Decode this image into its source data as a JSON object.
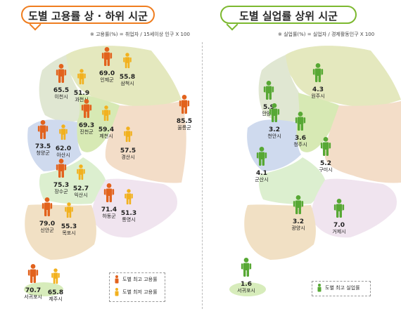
{
  "left_panel": {
    "title": "도별 고용률 상 · 하위 시군",
    "formula": "※ 고용률(%) = 취업자 / 15세이상 인구 X 100",
    "legend": {
      "high": "도별 최고 고용률",
      "low": "도별 최저 고용률"
    }
  },
  "right_panel": {
    "title": "도별 실업률 상위 시군",
    "formula": "※ 실업률(%) = 실업자 / 경제활동인구 X 100",
    "legend": {
      "high": "도별 최고 실업률"
    }
  },
  "colors": {
    "high": "#e2621d",
    "low": "#f2b11e",
    "unemp": "#57a834",
    "title_left": "#ef7d1f",
    "title_right": "#7cb82f"
  },
  "chart_data": [
    {
      "type": "map",
      "title": "도별 고용률 상 · 하위 시군",
      "unit": "%",
      "points": [
        {
          "name": "인제군",
          "value": 69.0,
          "kind": "high"
        },
        {
          "name": "삼척시",
          "value": 55.8,
          "kind": "low"
        },
        {
          "name": "이천시",
          "value": 65.5,
          "kind": "high"
        },
        {
          "name": "과천시",
          "value": 51.9,
          "kind": "low"
        },
        {
          "name": "울릉군",
          "value": 85.5,
          "kind": "high"
        },
        {
          "name": "진천군",
          "value": 69.3,
          "kind": "high"
        },
        {
          "name": "제천시",
          "value": 59.4,
          "kind": "low"
        },
        {
          "name": "청양군",
          "value": 73.5,
          "kind": "high"
        },
        {
          "name": "아산시",
          "value": 62.0,
          "kind": "low"
        },
        {
          "name": "경산시",
          "value": 57.5,
          "kind": "low"
        },
        {
          "name": "장수군",
          "value": 75.3,
          "kind": "high"
        },
        {
          "name": "익산시",
          "value": 52.7,
          "kind": "low"
        },
        {
          "name": "하동군",
          "value": 71.4,
          "kind": "high"
        },
        {
          "name": "통영시",
          "value": 51.3,
          "kind": "low"
        },
        {
          "name": "신안군",
          "value": 79.0,
          "kind": "high"
        },
        {
          "name": "목포시",
          "value": 55.3,
          "kind": "low"
        },
        {
          "name": "서귀포시",
          "value": 70.7,
          "kind": "high"
        },
        {
          "name": "제주시",
          "value": 65.8,
          "kind": "low"
        }
      ]
    },
    {
      "type": "map",
      "title": "도별 실업률 상위 시군",
      "unit": "%",
      "points": [
        {
          "name": "안양시",
          "value": 5.9
        },
        {
          "name": "원주시",
          "value": 4.3
        },
        {
          "name": "천안시",
          "value": 3.2
        },
        {
          "name": "청주시",
          "value": 3.6
        },
        {
          "name": "구미시",
          "value": 5.2
        },
        {
          "name": "군산시",
          "value": 4.1
        },
        {
          "name": "광양시",
          "value": 3.2
        },
        {
          "name": "거제시",
          "value": 7.0
        },
        {
          "name": "서귀포시",
          "value": 1.6
        }
      ]
    }
  ]
}
